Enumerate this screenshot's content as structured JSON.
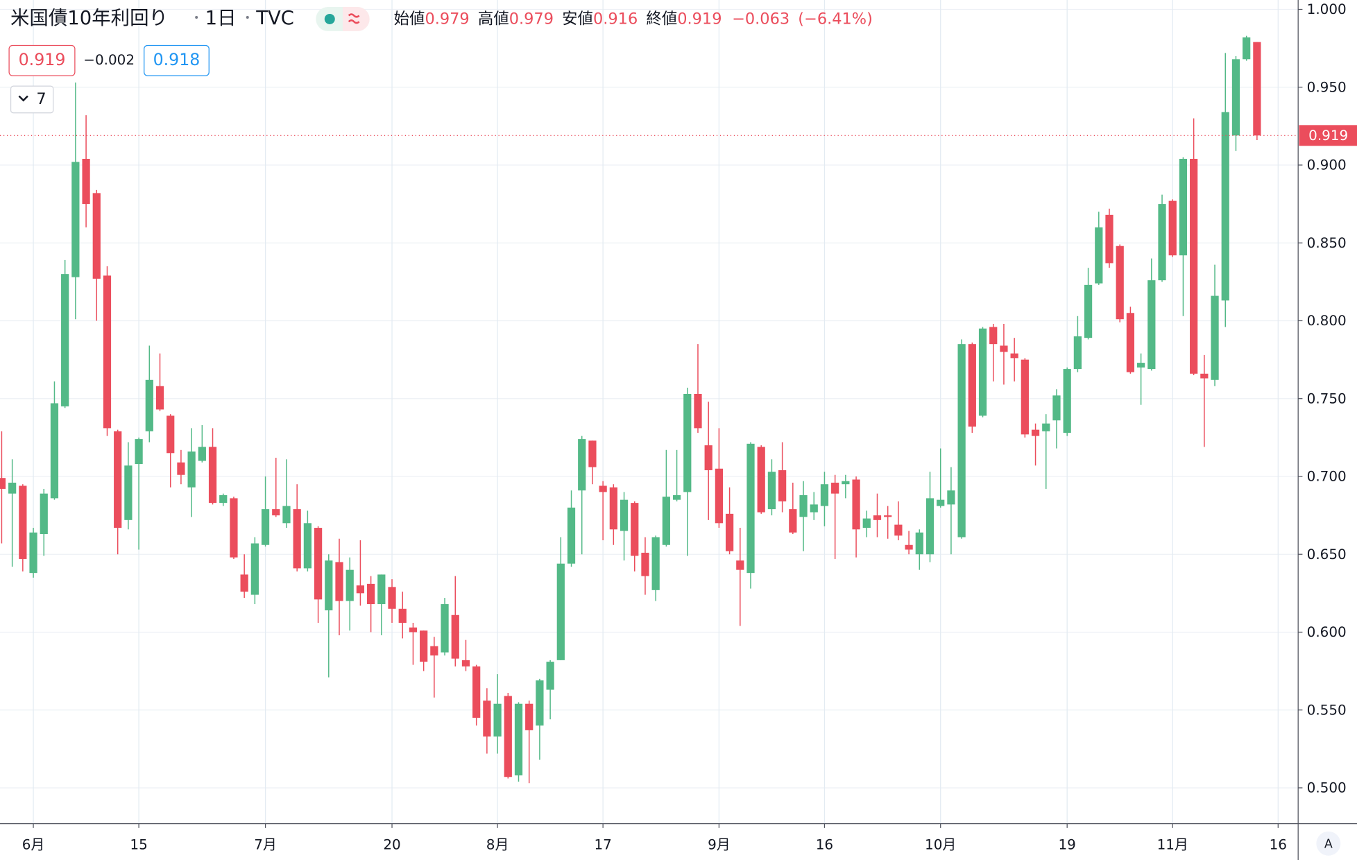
{
  "header": {
    "title": "米国債10年利回り",
    "interval": "1日",
    "source": "TVC",
    "indicators": 7,
    "auto_scale_button": "A"
  },
  "chart_data": {
    "type": "candlestick",
    "ohlc_labels": [
      "始値",
      "高値",
      "安値",
      "終値"
    ],
    "change": {
      "value": -0.063,
      "label": "−0.063"
    },
    "change_pct": {
      "value": -6.41,
      "label": "(−6.41%)"
    },
    "bid": 0.919,
    "spread": {
      "value": -0.002,
      "label": "−0.002"
    },
    "ask": 0.918,
    "up_color": "#53b987",
    "down_color": "#eb4d5c",
    "grid": true,
    "open": [
      0.699,
      0.689,
      0.694,
      0.638,
      0.663,
      0.686,
      0.745,
      0.828,
      0.904,
      0.882,
      0.829,
      0.729,
      0.672,
      0.708,
      0.729,
      0.758,
      0.739,
      0.709,
      0.693,
      0.71,
      0.719,
      0.683,
      0.686,
      0.637,
      0.624,
      0.656,
      0.679,
      0.67,
      0.679,
      0.641,
      0.667,
      0.614,
      0.645,
      0.62,
      0.63,
      0.631,
      0.618,
      0.629,
      0.615,
      0.603,
      0.601,
      0.591,
      0.587,
      0.611,
      0.582,
      0.578,
      0.556,
      0.533,
      0.559,
      0.508,
      0.554,
      0.54,
      0.563,
      0.582,
      0.644,
      0.691,
      0.723,
      0.694,
      0.693,
      0.665,
      0.683,
      0.651,
      0.627,
      0.656,
      0.685,
      0.69,
      0.753,
      0.72,
      0.705,
      0.676,
      0.646,
      0.638,
      0.719,
      0.679,
      0.704,
      0.679,
      0.674,
      0.677,
      0.681,
      0.696,
      0.695,
      0.698,
      0.667,
      0.675,
      0.675,
      0.669,
      0.656,
      0.65,
      0.65,
      0.681,
      0.682,
      0.661,
      0.785,
      0.739,
      0.796,
      0.784,
      0.779,
      0.775,
      0.73,
      0.729,
      0.736,
      0.728,
      0.769,
      0.789,
      0.824,
      0.868,
      0.848,
      0.805,
      0.77,
      0.769,
      0.826,
      0.877,
      0.842,
      0.904,
      0.766,
      0.762,
      0.813,
      0.919,
      0.968,
      0.979
    ],
    "high": [
      0.729,
      0.711,
      0.695,
      0.667,
      0.692,
      0.761,
      0.839,
      0.953,
      0.932,
      0.884,
      0.835,
      0.73,
      0.722,
      0.725,
      0.784,
      0.779,
      0.74,
      0.717,
      0.731,
      0.733,
      0.731,
      0.689,
      0.687,
      0.65,
      0.661,
      0.7,
      0.712,
      0.711,
      0.695,
      0.678,
      0.668,
      0.65,
      0.66,
      0.648,
      0.659,
      0.636,
      0.637,
      0.634,
      0.626,
      0.606,
      0.601,
      0.597,
      0.622,
      0.636,
      0.595,
      0.579,
      0.564,
      0.573,
      0.561,
      0.555,
      0.556,
      0.57,
      0.582,
      0.661,
      0.691,
      0.726,
      0.723,
      0.697,
      0.695,
      0.69,
      0.684,
      0.661,
      0.662,
      0.717,
      0.717,
      0.757,
      0.785,
      0.748,
      0.731,
      0.693,
      0.667,
      0.722,
      0.72,
      0.711,
      0.722,
      0.696,
      0.697,
      0.69,
      0.703,
      0.701,
      0.701,
      0.7,
      0.678,
      0.689,
      0.681,
      0.684,
      0.665,
      0.666,
      0.703,
      0.718,
      0.706,
      0.788,
      0.786,
      0.796,
      0.798,
      0.798,
      0.789,
      0.776,
      0.734,
      0.74,
      0.756,
      0.77,
      0.803,
      0.834,
      0.87,
      0.872,
      0.849,
      0.809,
      0.779,
      0.84,
      0.881,
      0.878,
      0.905,
      0.93,
      0.778,
      0.836,
      0.972,
      0.97,
      0.983,
      0.979
    ],
    "low": [
      0.657,
      0.642,
      0.639,
      0.635,
      0.649,
      0.685,
      0.744,
      0.801,
      0.86,
      0.8,
      0.726,
      0.65,
      0.666,
      0.653,
      0.722,
      0.742,
      0.693,
      0.695,
      0.674,
      0.709,
      0.682,
      0.681,
      0.647,
      0.622,
      0.618,
      0.655,
      0.674,
      0.667,
      0.639,
      0.639,
      0.606,
      0.571,
      0.598,
      0.601,
      0.617,
      0.6,
      0.598,
      0.606,
      0.596,
      0.579,
      0.575,
      0.558,
      0.585,
      0.578,
      0.575,
      0.54,
      0.522,
      0.522,
      0.506,
      0.504,
      0.503,
      0.518,
      0.544,
      0.582,
      0.642,
      0.65,
      0.695,
      0.659,
      0.656,
      0.646,
      0.639,
      0.624,
      0.62,
      0.655,
      0.684,
      0.649,
      0.728,
      0.672,
      0.667,
      0.65,
      0.604,
      0.628,
      0.676,
      0.675,
      0.677,
      0.663,
      0.652,
      0.672,
      0.668,
      0.647,
      0.686,
      0.648,
      0.661,
      0.661,
      0.66,
      0.659,
      0.65,
      0.64,
      0.645,
      0.68,
      0.65,
      0.66,
      0.728,
      0.738,
      0.761,
      0.759,
      0.761,
      0.725,
      0.707,
      0.692,
      0.718,
      0.726,
      0.767,
      0.788,
      0.823,
      0.834,
      0.799,
      0.766,
      0.746,
      0.768,
      0.825,
      0.841,
      0.803,
      0.765,
      0.719,
      0.758,
      0.796,
      0.909,
      0.967,
      0.916
    ],
    "close": [
      0.692,
      0.696,
      0.647,
      0.664,
      0.689,
      0.747,
      0.83,
      0.902,
      0.875,
      0.827,
      0.731,
      0.667,
      0.707,
      0.724,
      0.762,
      0.743,
      0.715,
      0.701,
      0.716,
      0.719,
      0.683,
      0.688,
      0.648,
      0.626,
      0.657,
      0.679,
      0.675,
      0.681,
      0.641,
      0.67,
      0.621,
      0.646,
      0.62,
      0.64,
      0.625,
      0.618,
      0.637,
      0.615,
      0.606,
      0.6,
      0.581,
      0.585,
      0.618,
      0.583,
      0.578,
      0.545,
      0.533,
      0.554,
      0.507,
      0.554,
      0.537,
      0.569,
      0.581,
      0.644,
      0.68,
      0.724,
      0.706,
      0.69,
      0.666,
      0.685,
      0.649,
      0.636,
      0.661,
      0.687,
      0.688,
      0.753,
      0.731,
      0.704,
      0.67,
      0.652,
      0.64,
      0.721,
      0.677,
      0.703,
      0.684,
      0.664,
      0.688,
      0.682,
      0.695,
      0.689,
      0.697,
      0.666,
      0.673,
      0.672,
      0.674,
      0.662,
      0.653,
      0.664,
      0.686,
      0.685,
      0.691,
      0.785,
      0.732,
      0.795,
      0.785,
      0.78,
      0.776,
      0.727,
      0.726,
      0.734,
      0.752,
      0.769,
      0.79,
      0.823,
      0.86,
      0.837,
      0.801,
      0.767,
      0.773,
      0.826,
      0.875,
      0.842,
      0.904,
      0.766,
      0.763,
      0.816,
      0.934,
      0.968,
      0.982,
      0.919
    ],
    "xlim": [
      -0.16,
      122.9
    ],
    "xticks": [
      {
        "value": 3,
        "label": "6月"
      },
      {
        "value": 13,
        "label": "15"
      },
      {
        "value": 25,
        "label": "7月"
      },
      {
        "value": 37,
        "label": "20"
      },
      {
        "value": 47,
        "label": "8月"
      },
      {
        "value": 57,
        "label": "17"
      },
      {
        "value": 68,
        "label": "9月"
      },
      {
        "value": 78,
        "label": "16"
      },
      {
        "value": 89,
        "label": "10月"
      },
      {
        "value": 101,
        "label": "19"
      },
      {
        "value": 111,
        "label": "11月"
      },
      {
        "value": 121,
        "label": "16"
      }
    ],
    "ylim": [
      0.477,
      1.006
    ],
    "yticks": [
      {
        "value": 0.5,
        "label": "0.500"
      },
      {
        "value": 0.55,
        "label": "0.550"
      },
      {
        "value": 0.6,
        "label": "0.600"
      },
      {
        "value": 0.65,
        "label": "0.650"
      },
      {
        "value": 0.7,
        "label": "0.700"
      },
      {
        "value": 0.75,
        "label": "0.750"
      },
      {
        "value": 0.8,
        "label": "0.800"
      },
      {
        "value": 0.85,
        "label": "0.850"
      },
      {
        "value": 0.9,
        "label": "0.900"
      },
      {
        "value": 0.95,
        "label": "0.950"
      },
      {
        "value": 1.0,
        "label": "1.000"
      }
    ]
  }
}
